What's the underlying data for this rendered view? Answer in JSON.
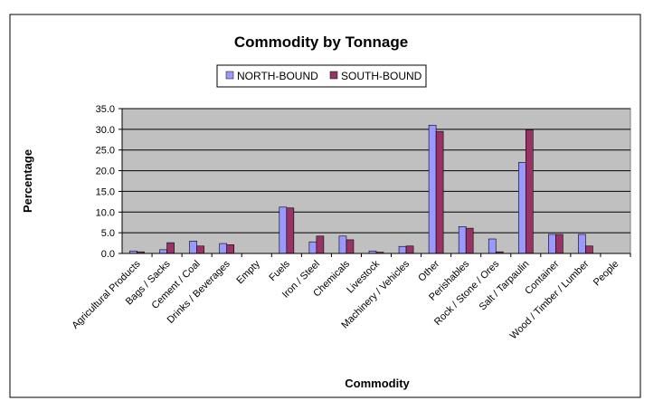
{
  "chart_data": {
    "type": "bar",
    "title": "Commodity by Tonnage",
    "xlabel": "Commodity",
    "ylabel": "Percentage",
    "ylim": [
      0,
      35
    ],
    "yticks": [
      "0.0",
      "5.0",
      "10.0",
      "15.0",
      "20.0",
      "25.0",
      "30.0",
      "35.0"
    ],
    "grid": true,
    "legend_position": "top-center",
    "categories": [
      "Agricultural Products",
      "Bags / Sacks",
      "Cement / Coal",
      "Drinks / Beverages",
      "Empty",
      "Fuels",
      "Iron / Steel",
      "Chemicals",
      "Livestock",
      "Machinery / Vehicles",
      "Other",
      "Perishables",
      "Rock / Stone / Ores",
      "Salt / Tarpaulin",
      "Container",
      "Wood / Timber / Lumber",
      "People"
    ],
    "series": [
      {
        "name": "NORTH-BOUND",
        "color": "#9999ff",
        "values": [
          0.6,
          0.9,
          3.0,
          2.4,
          0,
          11.2,
          2.8,
          4.2,
          0.6,
          1.7,
          31.0,
          6.5,
          3.5,
          22.0,
          4.6,
          4.6,
          0
        ]
      },
      {
        "name": "SOUTH-BOUND",
        "color": "#993366",
        "values": [
          0.4,
          2.6,
          1.8,
          2.1,
          0,
          11.0,
          4.2,
          3.3,
          0.3,
          1.8,
          29.5,
          6.1,
          0.4,
          29.9,
          4.6,
          1.8,
          0
        ]
      }
    ],
    "plot_bg": "#c0c0c0"
  }
}
